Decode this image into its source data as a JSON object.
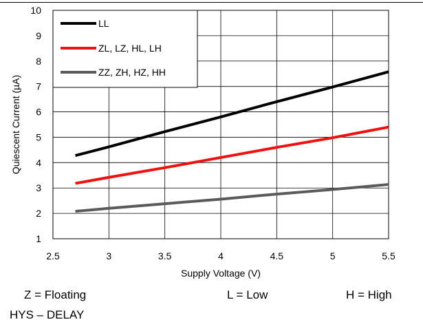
{
  "chart_data": {
    "type": "line",
    "xlabel": "Supply Voltage (V)",
    "ylabel": "Quiescent Current (µA)",
    "xlim": [
      2.5,
      5.5
    ],
    "ylim": [
      1,
      10
    ],
    "xticks": [
      "2.5",
      "3",
      "3.5",
      "4",
      "4.5",
      "5",
      "5.5"
    ],
    "yticks": [
      "1",
      "2",
      "3",
      "4",
      "5",
      "6",
      "7",
      "8",
      "9",
      "10"
    ],
    "grid": true,
    "legend_position": "top-left",
    "series": [
      {
        "name": "LL",
        "color": "#000000",
        "x": [
          2.7,
          3.0,
          3.5,
          4.0,
          4.5,
          5.0,
          5.5
        ],
        "y": [
          4.28,
          4.62,
          5.22,
          5.8,
          6.4,
          6.98,
          7.58
        ]
      },
      {
        "name": "ZL, LZ, HL, LH",
        "color": "#ee1111",
        "x": [
          2.7,
          3.0,
          3.5,
          4.0,
          4.5,
          5.0,
          5.5
        ],
        "y": [
          3.18,
          3.42,
          3.8,
          4.2,
          4.6,
          4.98,
          5.4
        ]
      },
      {
        "name": "ZZ, ZH, HZ, HH",
        "color": "#5a5a5a",
        "x": [
          2.7,
          3.0,
          3.5,
          4.0,
          4.5,
          5.0,
          5.5
        ],
        "y": [
          2.08,
          2.2,
          2.38,
          2.56,
          2.76,
          2.94,
          3.14
        ]
      }
    ],
    "annotations": {
      "z": "Z = Floating",
      "l": "L = Low",
      "h": "H = High",
      "footer": "HYS – DELAY"
    }
  }
}
